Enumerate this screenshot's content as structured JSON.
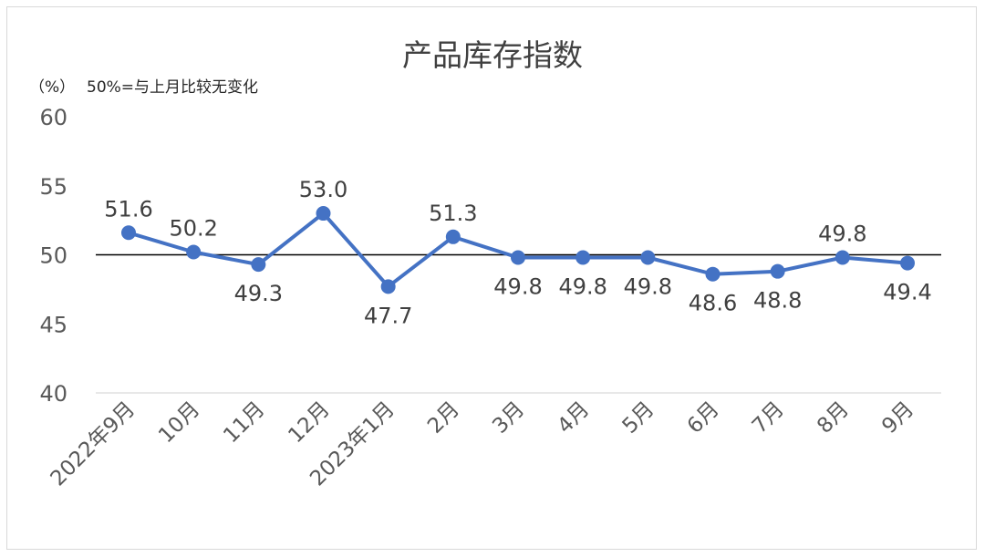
{
  "chart_data": {
    "type": "line",
    "title": "产品库存指数",
    "unit_label": "（%）",
    "note": "50%=与上月比较无变化",
    "categories": [
      "2022年9月",
      "10月",
      "11月",
      "12月",
      "2023年1月",
      "2月",
      "3月",
      "4月",
      "5月",
      "6月",
      "7月",
      "8月",
      "9月"
    ],
    "series": [
      {
        "values": [
          51.6,
          50.2,
          49.3,
          53.0,
          47.7,
          51.3,
          49.8,
          49.8,
          49.8,
          48.6,
          48.8,
          49.8,
          49.4
        ],
        "color": "#4472c4"
      }
    ],
    "data_labels": [
      "51.6",
      "50.2",
      "49.3",
      "53.0",
      "47.7",
      "51.3",
      "49.8",
      "49.8",
      "49.8",
      "48.6",
      "48.8",
      "49.8",
      "49.4"
    ],
    "ylim": [
      40,
      60
    ],
    "yticks": [
      "40",
      "45",
      "50",
      "55",
      "60"
    ],
    "reference_line": 50,
    "reference_color": "#000000",
    "gridlines": false
  }
}
